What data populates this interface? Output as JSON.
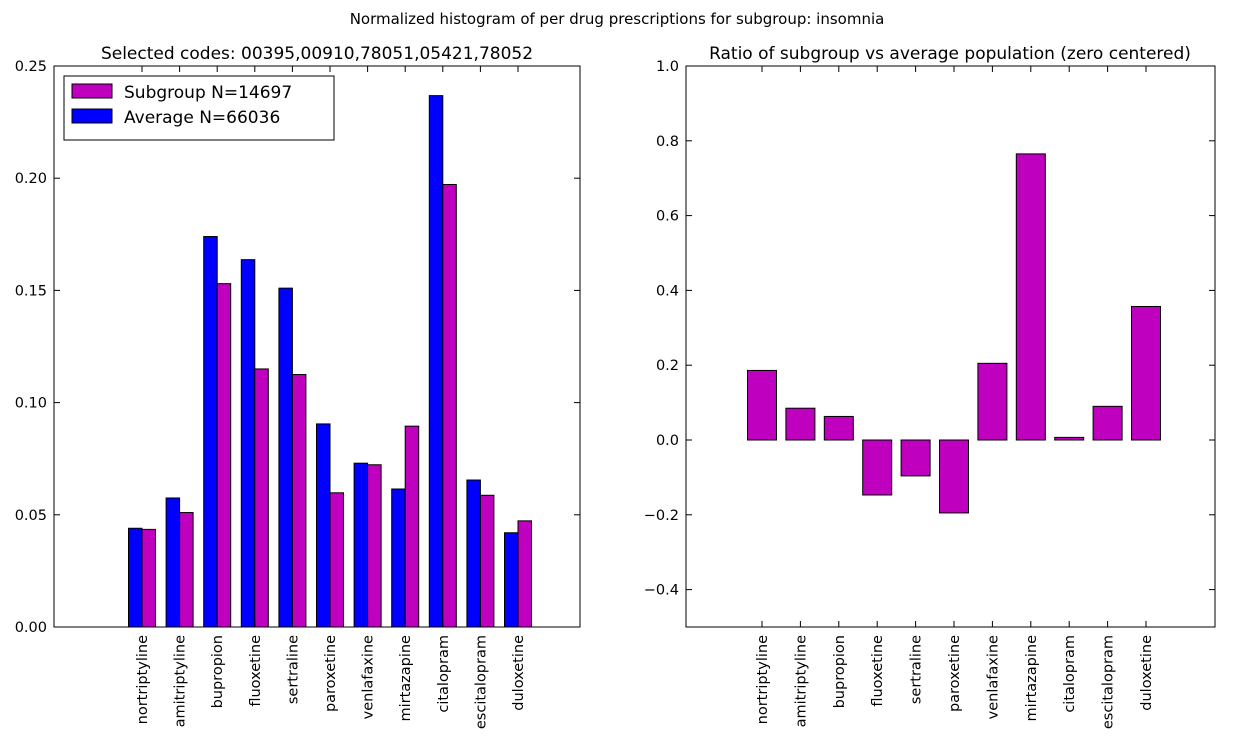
{
  "figure": {
    "suptitle": "Normalized histogram of per drug prescriptions for subgroup: insomnia"
  },
  "chart_data": [
    {
      "type": "bar",
      "title": "Selected codes: 00395,00910,78051,05421,78052",
      "xlabel": "",
      "ylabel": "",
      "categories": [
        "nortriptyline",
        "amitriptyline",
        "bupropion",
        "fluoxetine",
        "sertraline",
        "paroxetine",
        "venlafaxine",
        "mirtazapine",
        "citalopram",
        "escitalopram",
        "duloxetine"
      ],
      "series": [
        {
          "name": "Average N=66036",
          "color": "#0000ff",
          "values": [
            0.044,
            0.0575,
            0.174,
            0.1637,
            0.151,
            0.0905,
            0.073,
            0.0615,
            0.2368,
            0.0655,
            0.042
          ]
        },
        {
          "name": "Subgroup N=14697",
          "color": "#bf00bf",
          "values": [
            0.0435,
            0.051,
            0.153,
            0.115,
            0.1125,
            0.0598,
            0.0723,
            0.0895,
            0.1972,
            0.0587,
            0.0473
          ]
        }
      ],
      "legend_order": [
        "Subgroup N=14697",
        "Average N=66036"
      ],
      "legend_position": "upper-left",
      "ylim": [
        0.0,
        0.25
      ],
      "yticks": [
        "0.00",
        "0.05",
        "0.10",
        "0.15",
        "0.20",
        "0.25"
      ],
      "grid": false
    },
    {
      "type": "bar",
      "title": "Ratio of subgroup vs average population (zero centered)",
      "xlabel": "",
      "ylabel": "",
      "categories": [
        "nortriptyline",
        "amitriptyline",
        "bupropion",
        "fluoxetine",
        "sertraline",
        "paroxetine",
        "venlafaxine",
        "mirtazapine",
        "citalopram",
        "escitalopram",
        "duloxetine"
      ],
      "series": [
        {
          "color": "#bf00bf",
          "values": [
            0.186,
            0.085,
            0.063,
            -0.147,
            -0.096,
            -0.195,
            0.205,
            0.765,
            0.007,
            0.09,
            0.357
          ]
        }
      ],
      "ylim": [
        -0.5,
        1.0
      ],
      "yticks": [
        "−0.4",
        "−0.2",
        "0.0",
        "0.2",
        "0.4",
        "0.6",
        "0.8",
        "1.0"
      ],
      "grid": false
    }
  ]
}
